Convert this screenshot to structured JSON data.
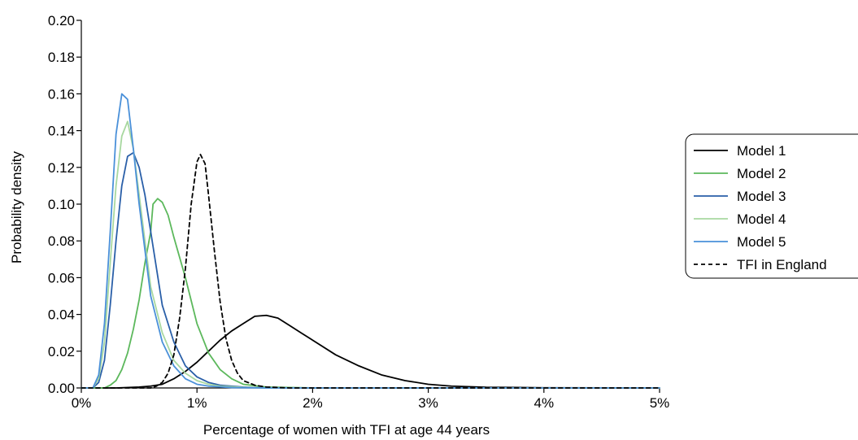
{
  "chart_data": {
    "type": "line",
    "title": "",
    "xlabel": "Percentage of women with TFI at age 44 years",
    "ylabel": "Probability density",
    "xlim": [
      0,
      5
    ],
    "ylim": [
      0,
      0.2
    ],
    "x_ticks": [
      0,
      1,
      2,
      3,
      4,
      5
    ],
    "x_tick_labels": [
      "0%",
      "1%",
      "2%",
      "3%",
      "4%",
      "5%"
    ],
    "y_ticks": [
      0,
      0.02,
      0.04,
      0.06,
      0.08,
      0.1,
      0.12,
      0.14,
      0.16,
      0.18,
      0.2
    ],
    "y_tick_labels": [
      "0.00",
      "0.02",
      "0.04",
      "0.06",
      "0.08",
      "0.10",
      "0.12",
      "0.14",
      "0.16",
      "0.18",
      "0.20"
    ],
    "grid": false,
    "legend_position": "right",
    "series": [
      {
        "name": "Model 1",
        "color": "#000000",
        "dash": "solid",
        "points": [
          [
            0,
            0
          ],
          [
            0.3,
            0
          ],
          [
            0.5,
            0.0005
          ],
          [
            0.6,
            0.001
          ],
          [
            0.7,
            0.002
          ],
          [
            0.8,
            0.005
          ],
          [
            0.9,
            0.009
          ],
          [
            1.0,
            0.014
          ],
          [
            1.1,
            0.02
          ],
          [
            1.2,
            0.026
          ],
          [
            1.3,
            0.031
          ],
          [
            1.4,
            0.035
          ],
          [
            1.5,
            0.039
          ],
          [
            1.6,
            0.0395
          ],
          [
            1.7,
            0.038
          ],
          [
            1.8,
            0.034
          ],
          [
            1.9,
            0.03
          ],
          [
            2.0,
            0.026
          ],
          [
            2.2,
            0.018
          ],
          [
            2.4,
            0.012
          ],
          [
            2.6,
            0.007
          ],
          [
            2.8,
            0.004
          ],
          [
            3.0,
            0.002
          ],
          [
            3.2,
            0.001
          ],
          [
            3.5,
            0.0004
          ],
          [
            4.0,
            0.0001
          ],
          [
            5.0,
            0
          ]
        ]
      },
      {
        "name": "Model 2",
        "color": "#5cb85c",
        "dash": "solid",
        "points": [
          [
            0,
            0
          ],
          [
            0.2,
            0
          ],
          [
            0.25,
            0.0015
          ],
          [
            0.3,
            0.004
          ],
          [
            0.35,
            0.01
          ],
          [
            0.4,
            0.019
          ],
          [
            0.45,
            0.032
          ],
          [
            0.5,
            0.048
          ],
          [
            0.55,
            0.068
          ],
          [
            0.6,
            0.085
          ],
          [
            0.62,
            0.1
          ],
          [
            0.66,
            0.103
          ],
          [
            0.7,
            0.101
          ],
          [
            0.75,
            0.094
          ],
          [
            0.8,
            0.082
          ],
          [
            0.9,
            0.06
          ],
          [
            1.0,
            0.035
          ],
          [
            1.1,
            0.019
          ],
          [
            1.2,
            0.01
          ],
          [
            1.3,
            0.005
          ],
          [
            1.4,
            0.002
          ],
          [
            1.6,
            0.0005
          ],
          [
            2.0,
            0
          ],
          [
            5.0,
            0
          ]
        ]
      },
      {
        "name": "Model 3",
        "color": "#2a5fa8",
        "dash": "solid",
        "points": [
          [
            0,
            0
          ],
          [
            0.1,
            0
          ],
          [
            0.15,
            0.003
          ],
          [
            0.2,
            0.015
          ],
          [
            0.25,
            0.045
          ],
          [
            0.3,
            0.08
          ],
          [
            0.35,
            0.11
          ],
          [
            0.4,
            0.126
          ],
          [
            0.45,
            0.128
          ],
          [
            0.5,
            0.12
          ],
          [
            0.55,
            0.105
          ],
          [
            0.6,
            0.085
          ],
          [
            0.65,
            0.065
          ],
          [
            0.7,
            0.045
          ],
          [
            0.8,
            0.025
          ],
          [
            0.9,
            0.012
          ],
          [
            1.0,
            0.006
          ],
          [
            1.1,
            0.003
          ],
          [
            1.2,
            0.0015
          ],
          [
            1.4,
            0.0005
          ],
          [
            1.6,
            0
          ],
          [
            5.0,
            0
          ]
        ]
      },
      {
        "name": "Model 4",
        "color": "#a8d8a0",
        "dash": "solid",
        "points": [
          [
            0,
            0
          ],
          [
            0.1,
            0
          ],
          [
            0.15,
            0.005
          ],
          [
            0.2,
            0.025
          ],
          [
            0.25,
            0.068
          ],
          [
            0.3,
            0.11
          ],
          [
            0.35,
            0.137
          ],
          [
            0.4,
            0.145
          ],
          [
            0.45,
            0.13
          ],
          [
            0.5,
            0.105
          ],
          [
            0.55,
            0.08
          ],
          [
            0.6,
            0.055
          ],
          [
            0.7,
            0.03
          ],
          [
            0.8,
            0.015
          ],
          [
            0.9,
            0.008
          ],
          [
            1.0,
            0.004
          ],
          [
            1.1,
            0.002
          ],
          [
            1.2,
            0.001
          ],
          [
            1.4,
            0.0003
          ],
          [
            1.6,
            0
          ],
          [
            5.0,
            0
          ]
        ]
      },
      {
        "name": "Model 5",
        "color": "#4a90d9",
        "dash": "solid",
        "points": [
          [
            0,
            0
          ],
          [
            0.1,
            0
          ],
          [
            0.15,
            0.007
          ],
          [
            0.2,
            0.035
          ],
          [
            0.25,
            0.085
          ],
          [
            0.3,
            0.138
          ],
          [
            0.35,
            0.16
          ],
          [
            0.4,
            0.157
          ],
          [
            0.45,
            0.13
          ],
          [
            0.5,
            0.1
          ],
          [
            0.55,
            0.075
          ],
          [
            0.6,
            0.05
          ],
          [
            0.7,
            0.025
          ],
          [
            0.8,
            0.012
          ],
          [
            0.9,
            0.005
          ],
          [
            1.0,
            0.002
          ],
          [
            1.1,
            0.001
          ],
          [
            1.3,
            0.0002
          ],
          [
            1.6,
            0
          ],
          [
            5.0,
            0
          ]
        ]
      },
      {
        "name": "TFI in England",
        "color": "#000000",
        "dash": "dashed",
        "points": [
          [
            0,
            0
          ],
          [
            0.6,
            0
          ],
          [
            0.65,
            0.001
          ],
          [
            0.7,
            0.003
          ],
          [
            0.75,
            0.008
          ],
          [
            0.8,
            0.018
          ],
          [
            0.85,
            0.038
          ],
          [
            0.9,
            0.065
          ],
          [
            0.95,
            0.1
          ],
          [
            1.0,
            0.123
          ],
          [
            1.03,
            0.127
          ],
          [
            1.07,
            0.122
          ],
          [
            1.1,
            0.105
          ],
          [
            1.15,
            0.075
          ],
          [
            1.2,
            0.047
          ],
          [
            1.25,
            0.027
          ],
          [
            1.3,
            0.015
          ],
          [
            1.35,
            0.008
          ],
          [
            1.4,
            0.004
          ],
          [
            1.5,
            0.0015
          ],
          [
            1.6,
            0.0005
          ],
          [
            1.8,
            0
          ],
          [
            5.0,
            0
          ]
        ]
      }
    ]
  }
}
